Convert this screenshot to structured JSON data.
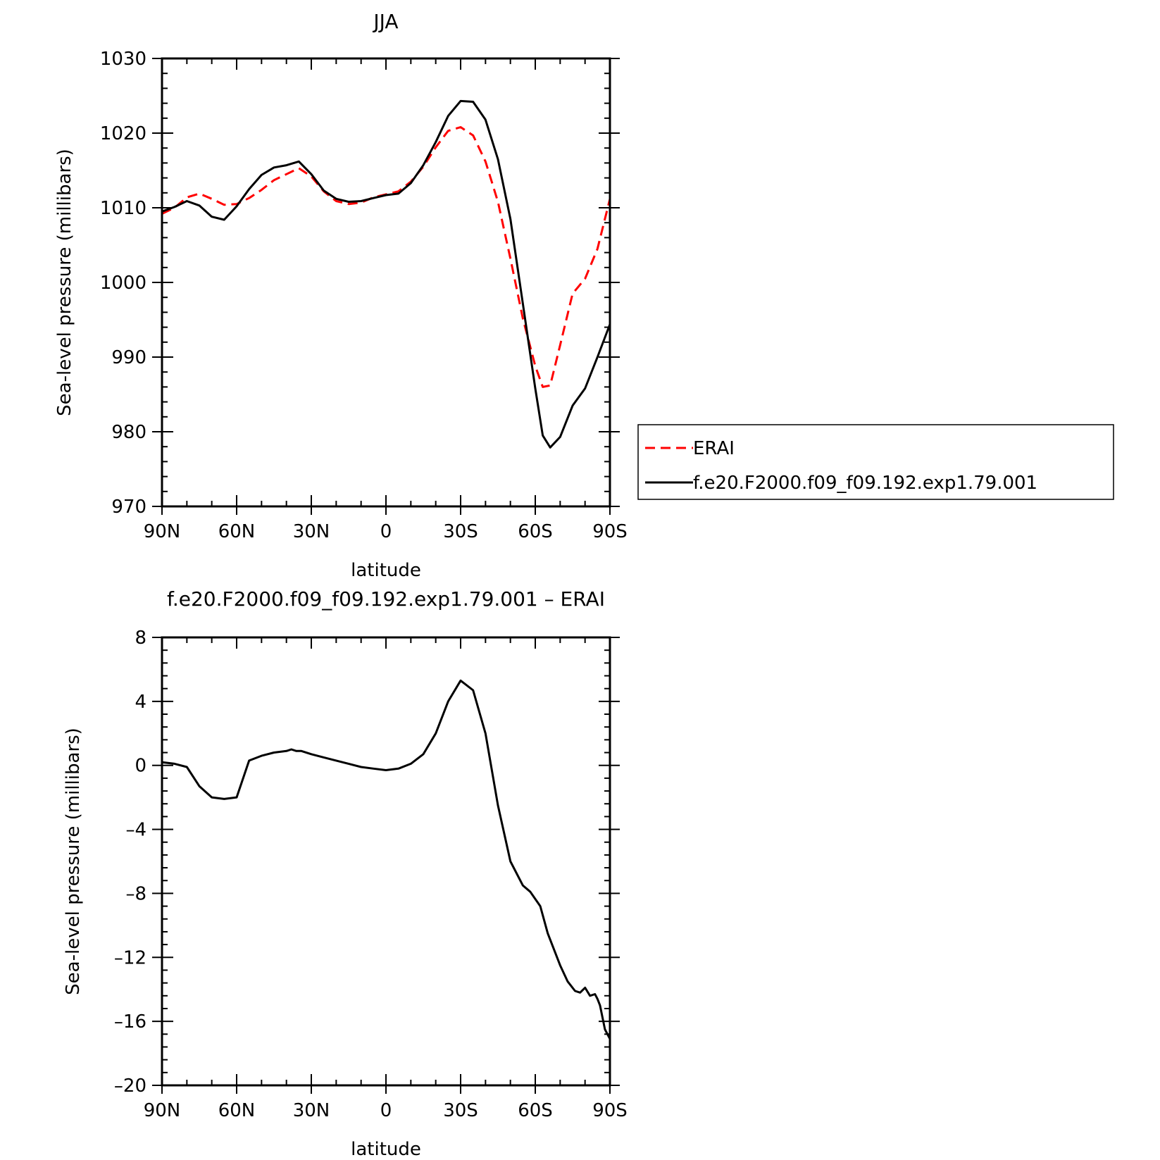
{
  "chart_data": [
    {
      "type": "line",
      "title": "JJA",
      "xlabel": "latitude",
      "ylabel": "Sea-level pressure (millibars)",
      "xlim": [
        90,
        -90
      ],
      "ylim": [
        970,
        1030
      ],
      "xticks": [
        90,
        60,
        30,
        0,
        -30,
        -60,
        -90
      ],
      "xtick_labels": [
        "90N",
        "60N",
        "30N",
        "0",
        "30S",
        "60S",
        "90S"
      ],
      "yticks": [
        970,
        980,
        990,
        1000,
        1010,
        1020,
        1030
      ],
      "ytick_labels": [
        "970",
        "980",
        "990",
        "1000",
        "1010",
        "1020",
        "1030"
      ],
      "legend": {
        "position": "right",
        "show": true
      },
      "series": [
        {
          "name": "ERAI",
          "color": "#ff0000",
          "dash": "dashed",
          "x": [
            90,
            85,
            80,
            75,
            70,
            65,
            60,
            55,
            50,
            45,
            40,
            35,
            30,
            25,
            20,
            15,
            10,
            5,
            0,
            -5,
            -10,
            -15,
            -20,
            -25,
            -30,
            -35,
            -40,
            -45,
            -50,
            -55,
            -60,
            -63,
            -66,
            -70,
            -75,
            -80,
            -85,
            -90
          ],
          "y": [
            1009.2,
            1010.0,
            1011.4,
            1011.9,
            1011.2,
            1010.4,
            1010.5,
            1011.3,
            1012.4,
            1013.7,
            1014.5,
            1015.3,
            1014.2,
            1012.2,
            1010.9,
            1010.5,
            1010.7,
            1011.4,
            1011.8,
            1012.2,
            1013.5,
            1015.5,
            1018.1,
            1020.3,
            1020.8,
            1019.7,
            1016.2,
            1010.8,
            1003.2,
            995.2,
            988.8,
            986.0,
            986.2,
            991.6,
            998.5,
            1000.5,
            1004.5,
            1011.2
          ]
        },
        {
          "name": "f.e20.F2000.f09_f09.192.exp1.79.001",
          "color": "#000000",
          "dash": "solid",
          "x": [
            90,
            85,
            80,
            75,
            70,
            65,
            60,
            55,
            50,
            45,
            40,
            35,
            30,
            25,
            20,
            15,
            10,
            5,
            0,
            -5,
            -10,
            -15,
            -20,
            -25,
            -30,
            -35,
            -40,
            -45,
            -50,
            -55,
            -60,
            -63,
            -66,
            -70,
            -75,
            -80,
            -85,
            -90
          ],
          "y": [
            1009.5,
            1010.1,
            1010.9,
            1010.3,
            1008.8,
            1008.4,
            1010.2,
            1012.5,
            1014.4,
            1015.4,
            1015.7,
            1016.2,
            1014.5,
            1012.3,
            1011.2,
            1010.8,
            1010.9,
            1011.3,
            1011.7,
            1011.9,
            1013.3,
            1015.7,
            1018.8,
            1022.3,
            1024.3,
            1024.2,
            1021.8,
            1016.5,
            1008.5,
            997.2,
            985.8,
            979.5,
            977.9,
            979.3,
            983.5,
            985.8,
            990.0,
            994.4
          ]
        }
      ]
    },
    {
      "type": "line",
      "title": "f.e20.F2000.f09_f09.192.exp1.79.001  –  ERAI",
      "xlabel": "latitude",
      "ylabel": "Sea-level pressure (millibars)",
      "xlim": [
        90,
        -90
      ],
      "ylim": [
        -20,
        8
      ],
      "xticks": [
        90,
        60,
        30,
        0,
        -30,
        -60,
        -90
      ],
      "xtick_labels": [
        "90N",
        "60N",
        "30N",
        "0",
        "30S",
        "60S",
        "90S"
      ],
      "yticks": [
        -20,
        -16,
        -12,
        -8,
        -4,
        0,
        4,
        8
      ],
      "ytick_labels": [
        "–20",
        "–16",
        "–12",
        "–8",
        "–4",
        "0",
        "4",
        "8"
      ],
      "series": [
        {
          "name": "",
          "color": "#000000",
          "dash": "solid",
          "x": [
            90,
            85,
            80,
            75,
            70,
            65,
            60,
            55,
            50,
            45,
            40,
            38,
            36,
            34,
            30,
            25,
            20,
            15,
            10,
            5,
            0,
            -5,
            -10,
            -15,
            -20,
            -25,
            -30,
            -35,
            -40,
            -45,
            -50,
            -55,
            -58,
            -62,
            -65,
            -70,
            -73,
            -76,
            -78,
            -80,
            -82,
            -84,
            -85,
            -86,
            -88,
            -90
          ],
          "y": [
            0.2,
            0.1,
            -0.1,
            -1.3,
            -2.0,
            -2.1,
            -2.0,
            0.3,
            0.6,
            0.8,
            0.9,
            1.0,
            0.9,
            0.9,
            0.7,
            0.5,
            0.3,
            0.1,
            -0.1,
            -0.2,
            -0.3,
            -0.2,
            0.1,
            0.7,
            2.0,
            4.0,
            5.3,
            4.7,
            2.0,
            -2.5,
            -6.0,
            -7.5,
            -7.9,
            -8.8,
            -10.5,
            -12.5,
            -13.5,
            -14.1,
            -14.2,
            -13.9,
            -14.4,
            -14.3,
            -14.6,
            -15.0,
            -16.5,
            -17.1
          ]
        }
      ]
    }
  ]
}
